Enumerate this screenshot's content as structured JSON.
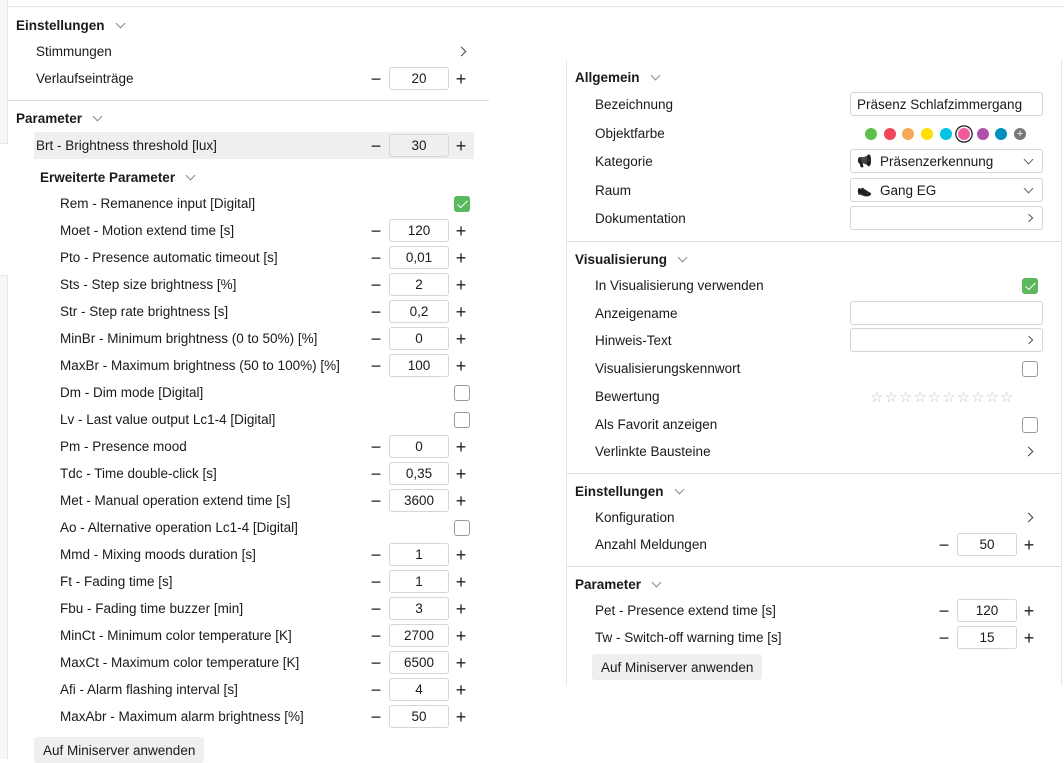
{
  "left": {
    "sections": [
      {
        "title": "Einstellungen",
        "rows": [
          {
            "label": "Stimmungen",
            "type": "nav"
          },
          {
            "label": "Verlaufseinträge",
            "type": "num",
            "value": "20"
          }
        ]
      },
      {
        "title": "Parameter",
        "rows": [
          {
            "label": "Brt - Brightness threshold [lux]",
            "type": "num",
            "value": "30",
            "highlight": true
          }
        ],
        "sub": {
          "title": "Erweiterte Parameter",
          "rows": [
            {
              "label": "Rem - Remanence input [Digital]",
              "type": "chk",
              "checked": true
            },
            {
              "label": "Moet - Motion extend time [s]",
              "type": "num",
              "value": "120"
            },
            {
              "label": "Pto - Presence automatic timeout [s]",
              "type": "num",
              "value": "0,01"
            },
            {
              "label": "Sts - Step size brightness [%]",
              "type": "num",
              "value": "2"
            },
            {
              "label": "Str - Step rate brightness [s]",
              "type": "num",
              "value": "0,2"
            },
            {
              "label": "MinBr - Minimum brightness (0 to 50%) [%]",
              "type": "num",
              "value": "0"
            },
            {
              "label": "MaxBr - Maximum brightness (50 to 100%) [%]",
              "type": "num",
              "value": "100"
            },
            {
              "label": "Dm - Dim mode [Digital]",
              "type": "chk",
              "checked": false
            },
            {
              "label": "Lv - Last value output Lc1-4 [Digital]",
              "type": "chk",
              "checked": false
            },
            {
              "label": "Pm - Presence mood",
              "type": "num",
              "value": "0"
            },
            {
              "label": "Tdc - Time double-click [s]",
              "type": "num",
              "value": "0,35"
            },
            {
              "label": "Met - Manual operation extend time [s]",
              "type": "num",
              "value": "3600"
            },
            {
              "label": "Ao - Alternative operation Lc1-4 [Digital]",
              "type": "chk",
              "checked": false
            },
            {
              "label": "Mmd - Mixing moods duration [s]",
              "type": "num",
              "value": "1"
            },
            {
              "label": "Ft - Fading time [s]",
              "type": "num",
              "value": "1"
            },
            {
              "label": "Fbu - Fading time buzzer [min]",
              "type": "num",
              "value": "3"
            },
            {
              "label": "MinCt - Minimum color temperature [K]",
              "type": "num",
              "value": "2700"
            },
            {
              "label": "MaxCt - Maximum color temperature [K]",
              "type": "num",
              "value": "6500"
            },
            {
              "label": "Afi - Alarm flashing interval [s]",
              "type": "num",
              "value": "4"
            },
            {
              "label": "MaxAbr - Maximum alarm brightness [%]",
              "type": "num",
              "value": "50"
            }
          ]
        }
      }
    ],
    "apply_label": "Auf Miniserver anwenden"
  },
  "right": {
    "sections": [
      {
        "title": "Allgemein",
        "rows": [
          {
            "label": "Bezeichnung",
            "type": "text",
            "value": "Präsenz Schlafzimmergang"
          },
          {
            "label": "Objektfarbe",
            "type": "colors"
          },
          {
            "label": "Kategorie",
            "type": "select",
            "value": "Präsenzerkennung",
            "icon": "megaphone-icon"
          },
          {
            "label": "Raum",
            "type": "select",
            "value": "Gang EG",
            "icon": "slippers-icon"
          },
          {
            "label": "Dokumentation",
            "type": "navfield",
            "value": ""
          }
        ]
      },
      {
        "title": "Visualisierung",
        "rows": [
          {
            "label": "In Visualisierung verwenden",
            "type": "chk",
            "checked": true
          },
          {
            "label": "Anzeigename",
            "type": "text",
            "value": ""
          },
          {
            "label": "Hinweis-Text",
            "type": "navfield",
            "value": ""
          },
          {
            "label": "Visualisierungskennwort",
            "type": "chk",
            "checked": false
          },
          {
            "label": "Bewertung",
            "type": "stars",
            "rating": 0,
            "max": 10
          },
          {
            "label": "Als Favorit anzeigen",
            "type": "chk",
            "checked": false
          },
          {
            "label": "Verlinkte Bausteine",
            "type": "nav"
          }
        ]
      },
      {
        "title": "Einstellungen",
        "rows": [
          {
            "label": "Konfiguration",
            "type": "nav"
          },
          {
            "label": "Anzahl Meldungen",
            "type": "num",
            "value": "50"
          }
        ]
      },
      {
        "title": "Parameter",
        "rows": [
          {
            "label": "Pet - Presence extend time [s]",
            "type": "num",
            "value": "120"
          },
          {
            "label": "Tw - Switch-off warning time [s]",
            "type": "num",
            "value": "15"
          }
        ]
      }
    ],
    "colors": [
      "#5cbf4a",
      "#f0475a",
      "#f5a85a",
      "#ffe000",
      "#00c3e6",
      "#ee5b9b",
      "#b04fa8",
      "#0090c0",
      "#777777"
    ],
    "selected_color": "#ee5b9b",
    "apply_label": "Auf Miniserver anwenden"
  }
}
